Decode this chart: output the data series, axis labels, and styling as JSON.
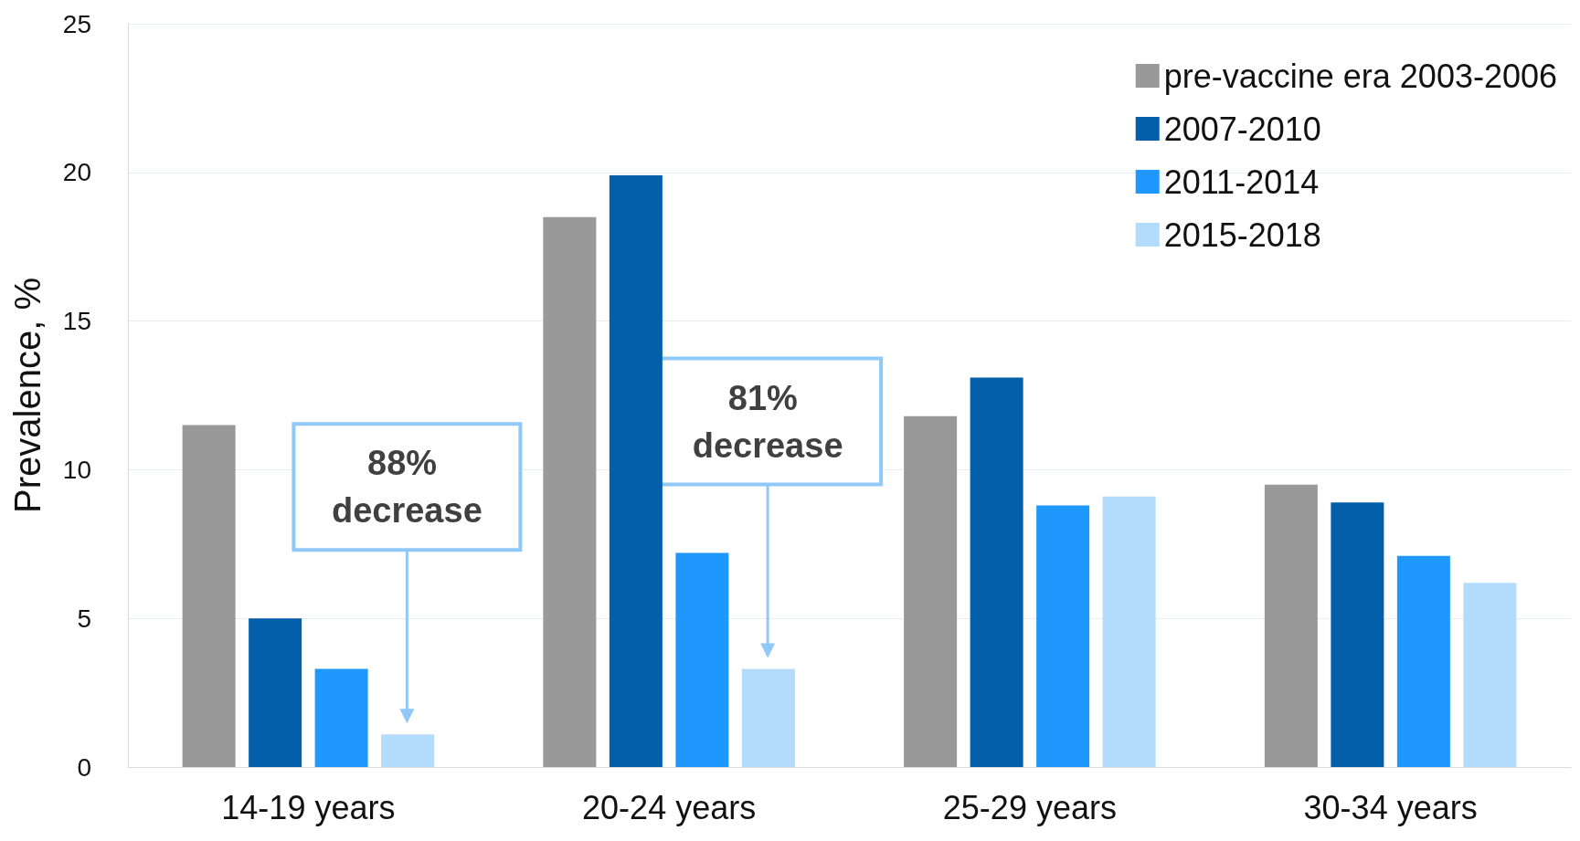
{
  "chart_data": {
    "type": "bar",
    "ylabel": "Prevalence, %",
    "categories": [
      "14-19 years",
      "20-24 years",
      "25-29 years",
      "30-34 years"
    ],
    "series": [
      {
        "name": "pre-vaccine era 2003-2006",
        "color": "#999999",
        "values": [
          11.5,
          18.5,
          11.8,
          9.5
        ]
      },
      {
        "name": "2007-2010",
        "color": "#045fab",
        "values": [
          5.0,
          19.9,
          13.1,
          8.9
        ]
      },
      {
        "name": "2011-2014",
        "color": "#1e98fc",
        "values": [
          3.3,
          7.2,
          8.8,
          7.1
        ]
      },
      {
        "name": "2015-2018",
        "color": "#b3dcfc",
        "values": [
          1.1,
          3.3,
          9.1,
          6.2
        ]
      }
    ],
    "ylim": [
      0,
      25
    ],
    "yticks": [
      0,
      5,
      10,
      15,
      20,
      25
    ],
    "grid": "y",
    "legend": "top right",
    "annotations": [
      "88% decrease",
      "81% decrease"
    ]
  }
}
